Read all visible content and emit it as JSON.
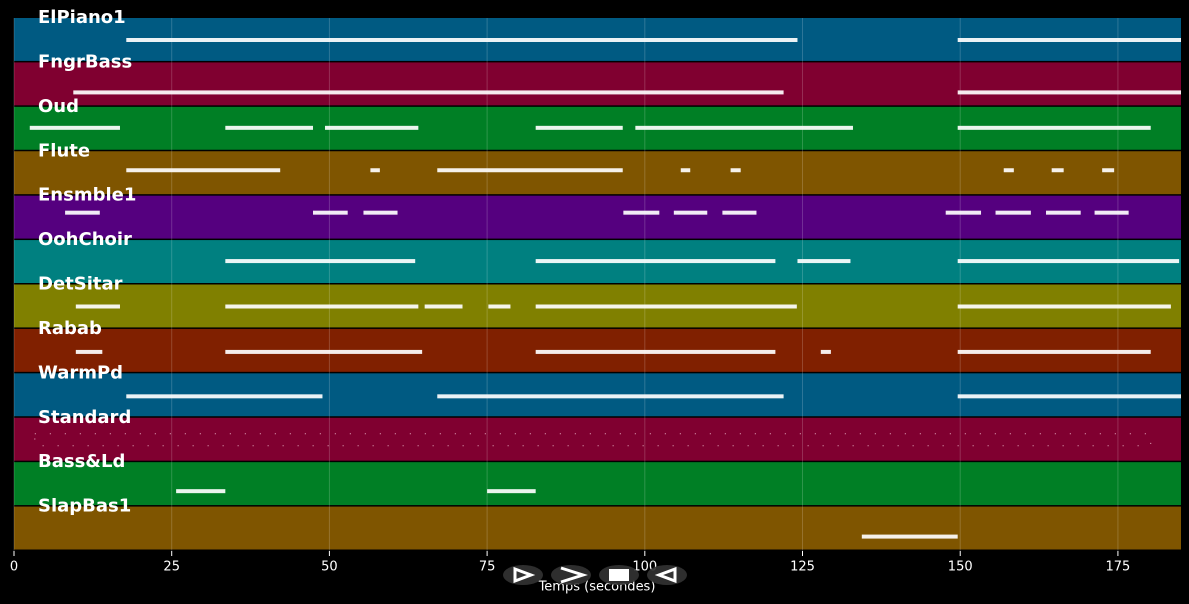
{
  "chart_data": {
    "type": "pianoroll",
    "xlabel": "Temps (secondes)",
    "xlim": [
      0,
      185
    ],
    "xticks": [
      0,
      25,
      50,
      75,
      100,
      125,
      150,
      175
    ],
    "grid": true,
    "tracks": [
      {
        "name": "ElPiano1",
        "color": "#005a82",
        "segments": [
          [
            17.8,
            124.2
          ],
          [
            149.6,
            185
          ]
        ]
      },
      {
        "name": "FngrBass",
        "color": "#800030",
        "segments": [
          [
            9.4,
            122
          ],
          [
            149.6,
            185
          ]
        ]
      },
      {
        "name": "Oud",
        "color": "#007f25",
        "segments": [
          [
            2.5,
            16.8
          ],
          [
            33.5,
            47.4
          ],
          [
            49.3,
            64.1
          ],
          [
            82.7,
            96.5
          ],
          [
            98.5,
            133
          ],
          [
            149.6,
            180.2
          ]
        ]
      },
      {
        "name": "Flute",
        "color": "#7f5500",
        "segments": [
          [
            17.8,
            42.2
          ],
          [
            56.5,
            58
          ],
          [
            67.1,
            96.5
          ],
          [
            105.7,
            107.2
          ],
          [
            113.6,
            115.2
          ],
          [
            156.9,
            158.5
          ],
          [
            164.5,
            166.4
          ],
          [
            172.5,
            174.4
          ]
        ]
      },
      {
        "name": "Ensmble1",
        "color": "#55007f",
        "segments": [
          [
            8.1,
            13.6
          ],
          [
            47.4,
            52.9
          ],
          [
            55.4,
            60.8
          ],
          [
            96.6,
            102.3
          ],
          [
            104.6,
            109.9
          ],
          [
            112.3,
            117.7
          ],
          [
            147.7,
            153.3
          ],
          [
            155.6,
            161.2
          ],
          [
            163.6,
            169.1
          ],
          [
            171.3,
            176.7
          ]
        ]
      },
      {
        "name": "OohChoir",
        "color": "#008080",
        "segments": [
          [
            33.5,
            63.6
          ],
          [
            82.7,
            120.7
          ],
          [
            124.2,
            132.6
          ],
          [
            149.6,
            184.7
          ]
        ]
      },
      {
        "name": "DetSitar",
        "color": "#808000",
        "segments": [
          [
            9.8,
            16.8
          ],
          [
            33.5,
            64.1
          ],
          [
            65.1,
            71.1
          ],
          [
            75.2,
            78.7
          ],
          [
            82.7,
            124.1
          ],
          [
            149.6,
            183.4
          ]
        ]
      },
      {
        "name": "Rabab",
        "color": "#802000",
        "segments": [
          [
            9.8,
            14
          ],
          [
            33.5,
            64.7
          ],
          [
            82.7,
            120.7
          ],
          [
            127.9,
            129.5
          ],
          [
            149.6,
            180.2
          ]
        ]
      },
      {
        "name": "WarmPd",
        "color": "#005a82",
        "segments": [
          [
            17.8,
            48.9
          ],
          [
            67.1,
            122
          ],
          [
            149.6,
            185
          ]
        ]
      },
      {
        "name": "Standard",
        "color": "#800030",
        "segments": [
          [
            3.3,
            180.2
          ]
        ]
      },
      {
        "name": "Bass&Ld",
        "color": "#007f25",
        "segments": [
          [
            25.7,
            33.5
          ],
          [
            75,
            82.7
          ]
        ]
      },
      {
        "name": "SlapBas1",
        "color": "#7f5500",
        "segments": [
          [
            134.4,
            149.6
          ]
        ]
      }
    ]
  }
}
